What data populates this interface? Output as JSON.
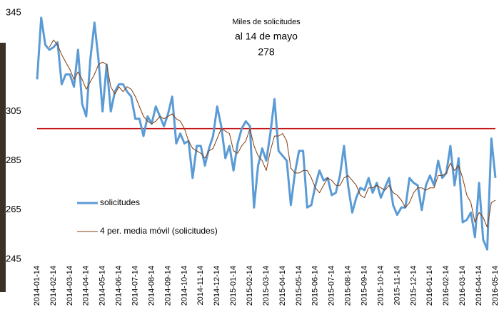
{
  "chart_data": {
    "type": "line",
    "annotations": [
      "Miles de solicitudes",
      "al 14 de mayo",
      "278"
    ],
    "categories": [
      "2014-01-14",
      null,
      null,
      null,
      "2014-02-14",
      null,
      null,
      null,
      "2014-03-14",
      null,
      null,
      null,
      "2014-04-14",
      null,
      null,
      null,
      "2014-05-14",
      null,
      null,
      null,
      "2014-06-14",
      null,
      null,
      null,
      "2014-07-14",
      null,
      null,
      null,
      "2014-08-14",
      null,
      null,
      null,
      "2014-09-14",
      null,
      null,
      null,
      "2014-10-14",
      null,
      null,
      null,
      "2014-11-14",
      null,
      null,
      null,
      "2014-12-14",
      null,
      null,
      null,
      "2015-01-14",
      null,
      null,
      null,
      "2015-02-14",
      null,
      null,
      null,
      "2015-03-14",
      null,
      null,
      null,
      "2015-04-14",
      null,
      null,
      null,
      "2015-05-14",
      null,
      null,
      null,
      "2015-06-14",
      null,
      null,
      null,
      "2015-07-14",
      null,
      null,
      null,
      "2015-08-14",
      null,
      null,
      null,
      "2015-09-14",
      null,
      null,
      null,
      "2015-10-14",
      null,
      null,
      null,
      "2015-11-14",
      null,
      null,
      null,
      "2015-12-14",
      null,
      null,
      null,
      "2016-01-14",
      null,
      null,
      null,
      "2016-02-14",
      null,
      null,
      null,
      "2016-03-14",
      null,
      null,
      null,
      "2016-04-14",
      null,
      null,
      null,
      "2016-05-14"
    ],
    "series": [
      {
        "name": "solicitudes",
        "color": "#5b9bd5",
        "width": 3,
        "values": [
          318,
          343,
          332,
          330,
          331,
          333,
          316,
          320,
          320,
          315,
          330,
          308,
          303,
          326,
          341,
          326,
          305,
          324,
          305,
          313,
          316,
          316,
          313,
          311,
          302,
          302,
          295,
          303,
          300,
          307,
          303,
          299,
          304,
          311,
          292,
          296,
          292,
          293,
          278,
          291,
          291,
          283,
          290,
          295,
          307,
          299,
          286,
          291,
          281,
          292,
          298,
          301,
          299,
          266,
          283,
          290,
          285,
          296,
          310,
          289,
          287,
          285,
          267,
          280,
          289,
          289,
          266,
          267,
          275,
          281,
          277,
          278,
          271,
          272,
          279,
          291,
          275,
          264,
          270,
          274,
          273,
          278,
          272,
          276,
          270,
          274,
          278,
          267,
          263,
          266,
          266,
          278,
          276,
          275,
          265,
          275,
          279,
          275,
          285,
          278,
          280,
          291,
          275,
          286,
          260,
          261,
          264,
          254,
          276,
          253,
          249,
          294,
          278
        ]
      },
      {
        "name": "4 per. media móvil (solicitudes)",
        "color": "#843c0c",
        "width": 1,
        "values": [
          null,
          null,
          null,
          331,
          334,
          332,
          328,
          325,
          322,
          318,
          321,
          318,
          314,
          317,
          320,
          324,
          325,
          324,
          315,
          312,
          315,
          313,
          315,
          314,
          311,
          307,
          303,
          301,
          300,
          301,
          303,
          302,
          303,
          304,
          302,
          301,
          298,
          293,
          290,
          289,
          288,
          286,
          289,
          290,
          294,
          298,
          297,
          296,
          289,
          288,
          291,
          293,
          298,
          291,
          287,
          285,
          281,
          289,
          295,
          295,
          296,
          293,
          282,
          280,
          280,
          281,
          281,
          278,
          274,
          272,
          275,
          278,
          277,
          275,
          275,
          278,
          279,
          277,
          275,
          271,
          270,
          274,
          274,
          275,
          274,
          273,
          275,
          272,
          271,
          269,
          266,
          268,
          272,
          274,
          274,
          273,
          274,
          274,
          279,
          279,
          280,
          284,
          281,
          283,
          278,
          271,
          268,
          260,
          264,
          262,
          258,
          268,
          269
        ]
      }
    ],
    "reference_line": {
      "value": 298,
      "color": "#c00000"
    },
    "ylim": [
      245,
      345
    ],
    "yticks": [
      245,
      265,
      285,
      305,
      345
    ]
  }
}
